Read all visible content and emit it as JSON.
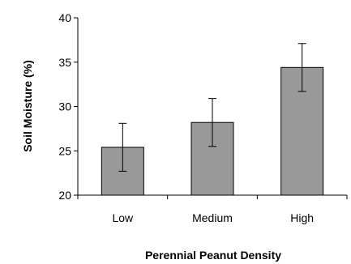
{
  "chart_data": {
    "type": "bar",
    "categories": [
      "Low",
      "Medium",
      "High"
    ],
    "values": [
      25.4,
      28.2,
      34.4
    ],
    "error_bars": [
      {
        "low": 22.7,
        "high": 28.1
      },
      {
        "low": 25.5,
        "high": 30.9
      },
      {
        "low": 31.7,
        "high": 37.1
      }
    ],
    "xlabel": "Perennial Peanut Density",
    "ylabel": "Soil Moisture (%)",
    "ylim": [
      20,
      40
    ],
    "yticks": [
      "20",
      "25",
      "30",
      "35",
      "40"
    ],
    "grid": false,
    "legend": "none",
    "bar_color": "#999999",
    "bar_edge_color": "#000000"
  }
}
